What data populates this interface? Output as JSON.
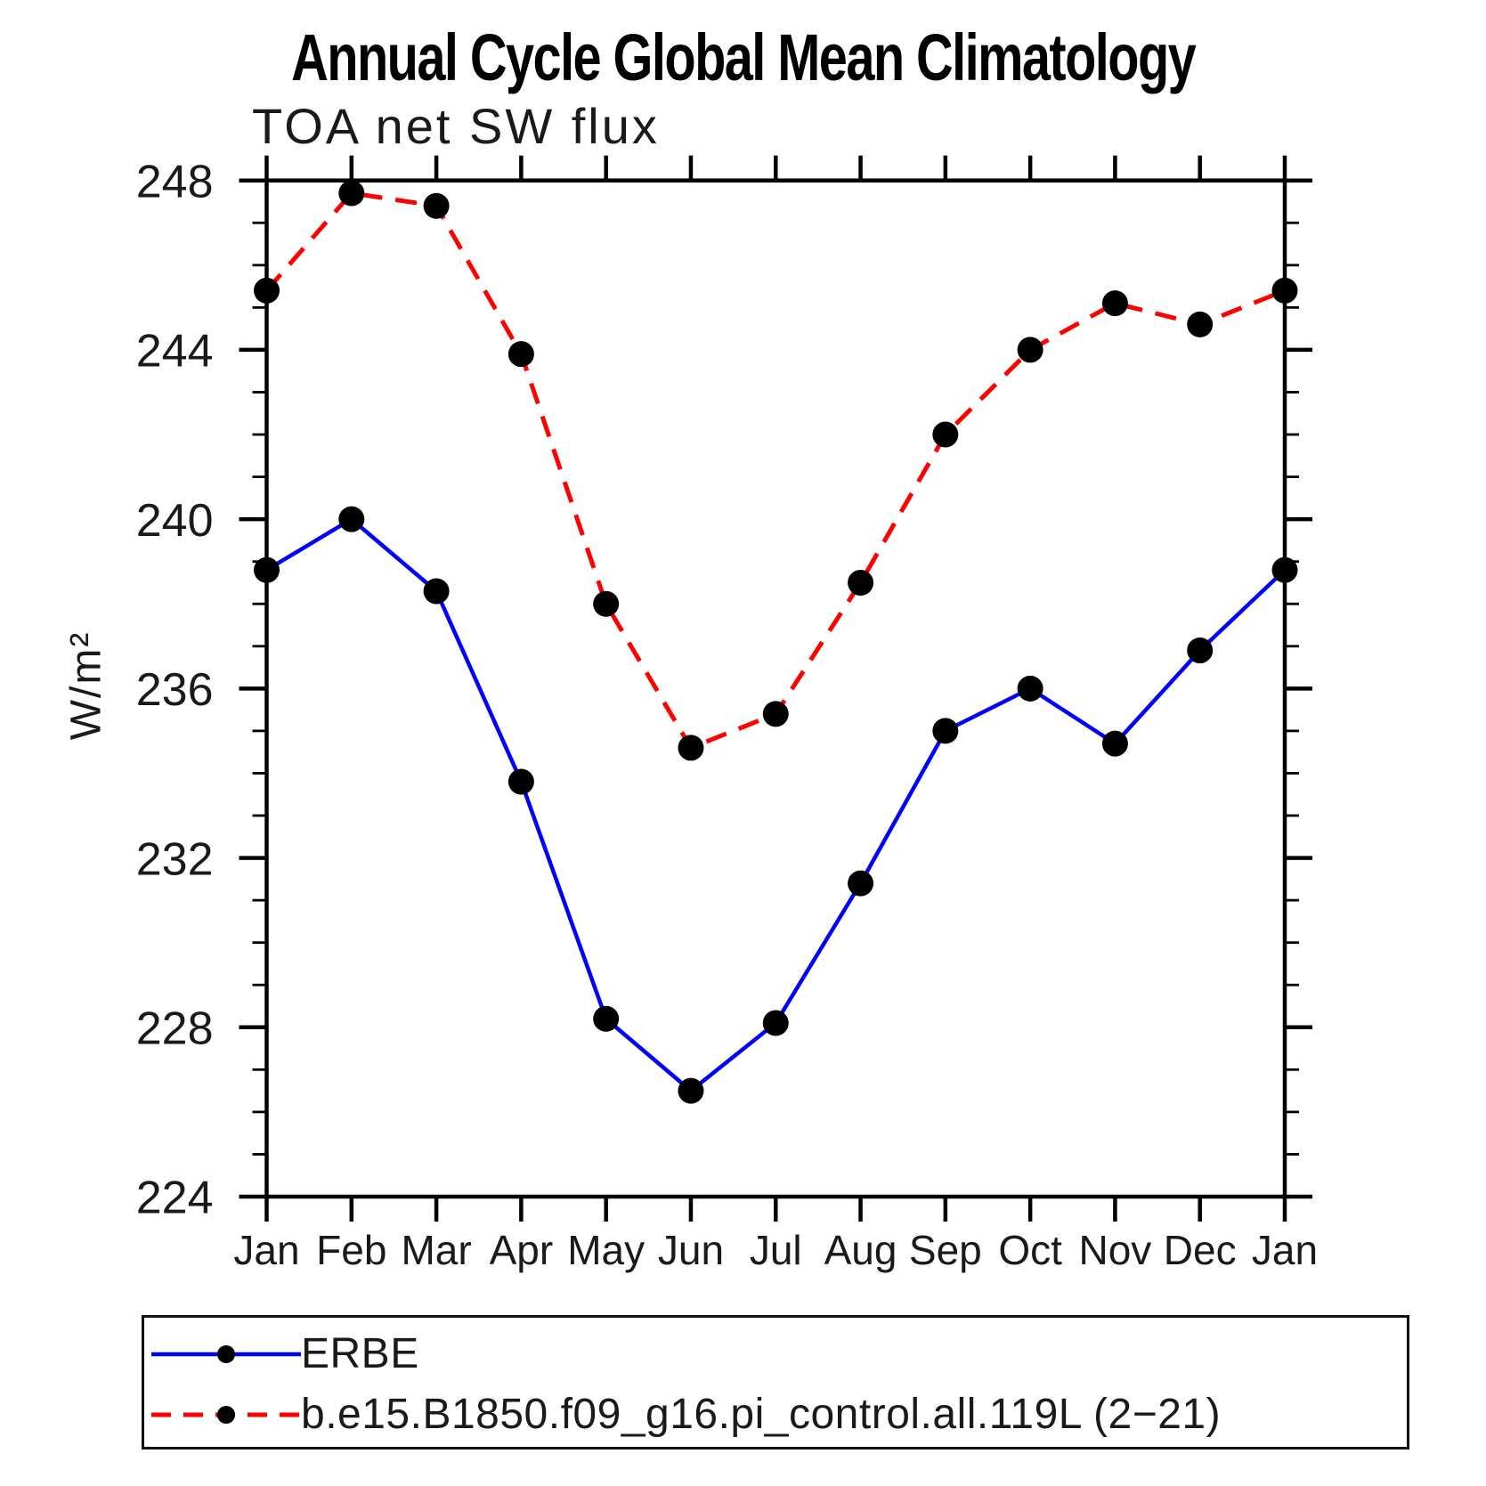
{
  "chart_data": {
    "type": "line",
    "title": "Annual Cycle Global Mean Climatology",
    "subtitle": "TOA net SW flux",
    "ylabel": "W/m²",
    "xlabel": "",
    "categories": [
      "Jan",
      "Feb",
      "Mar",
      "Apr",
      "May",
      "Jun",
      "Jul",
      "Aug",
      "Sep",
      "Oct",
      "Nov",
      "Dec",
      "Jan"
    ],
    "series": [
      {
        "name": "ERBE",
        "color": "#0000ff",
        "line_style": "solid",
        "values": [
          238.8,
          240.0,
          238.3,
          233.8,
          228.2,
          226.5,
          228.1,
          231.4,
          235.0,
          236.0,
          234.7,
          236.9,
          238.8
        ]
      },
      {
        "name": "b.e15.B1850.f09_g16.pi_control.all.119L (2−21)",
        "color": "#ff0000",
        "line_style": "dashed",
        "values": [
          245.4,
          247.7,
          247.4,
          243.9,
          238.0,
          234.6,
          235.4,
          238.5,
          242.0,
          244.0,
          245.1,
          244.6,
          245.4
        ]
      }
    ],
    "marker": {
      "shape": "circle",
      "color": "#000000"
    },
    "ylim": [
      224,
      248
    ],
    "yticks": [
      224,
      228,
      232,
      236,
      240,
      244,
      248
    ],
    "y_minor_tick_step": 1,
    "grid": false,
    "legend_position": "bottom"
  }
}
